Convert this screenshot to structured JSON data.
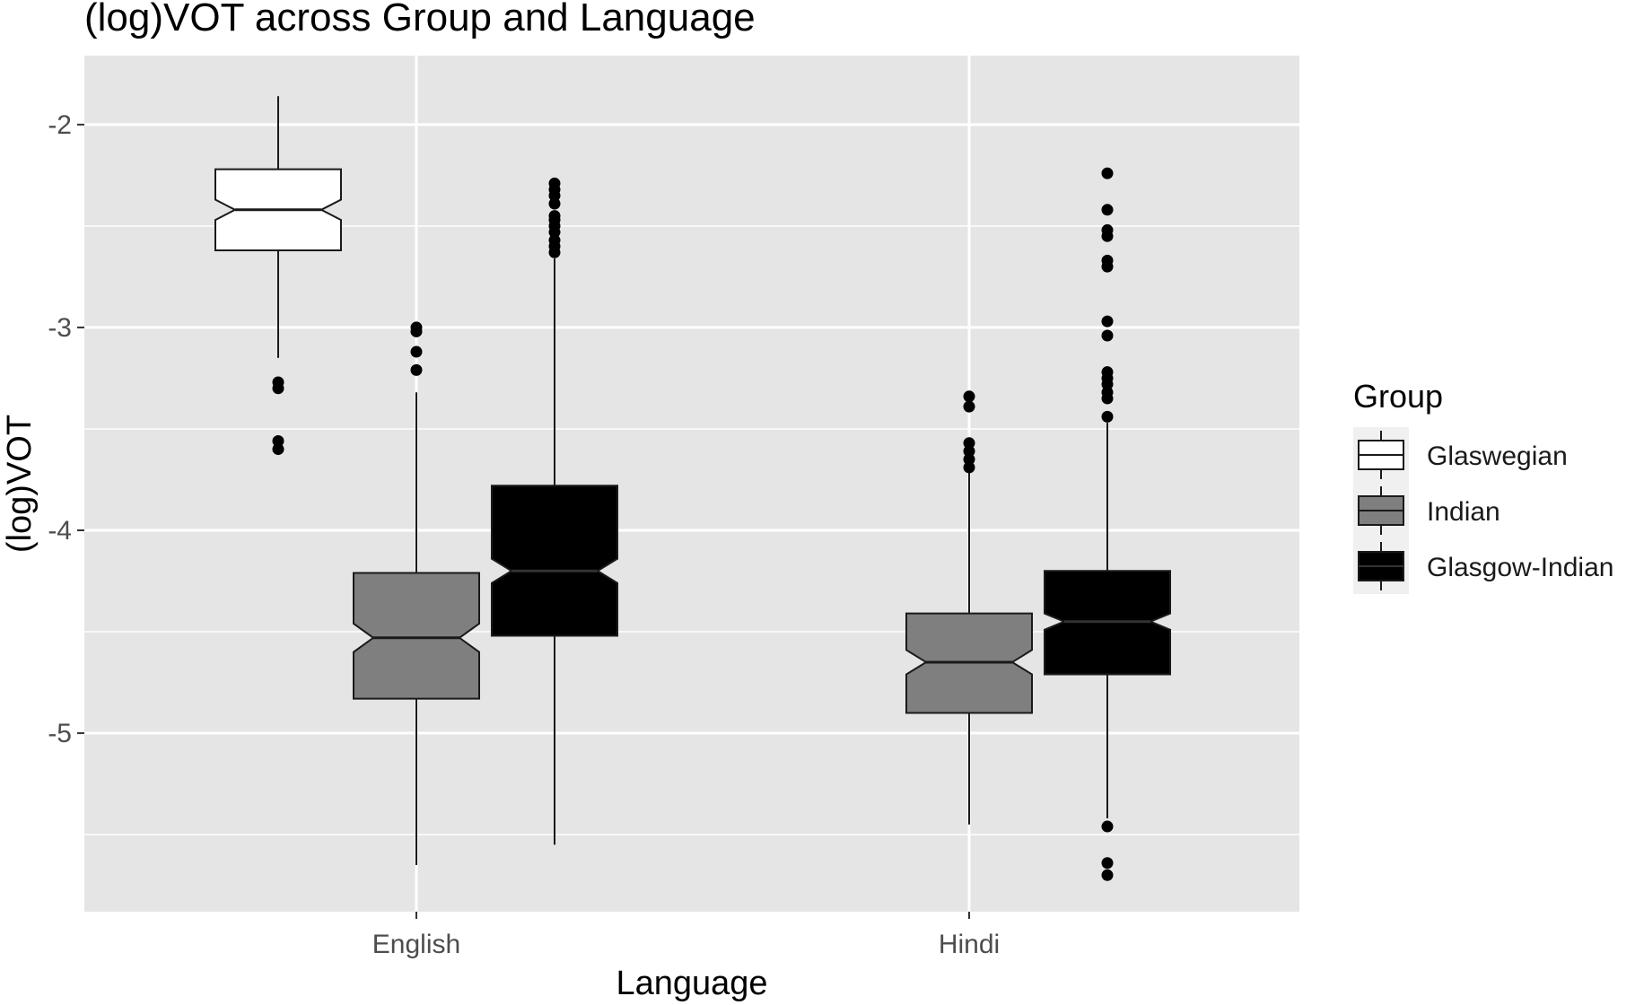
{
  "chart_data": {
    "type": "boxplot",
    "notched": true,
    "title": "(log)VOT across Group and Language",
    "xlabel": "Language",
    "ylabel": "(log)VOT",
    "categories": [
      "English",
      "Hindi"
    ],
    "yticks": [
      -2,
      -3,
      -4,
      -5
    ],
    "ytick_labels": [
      "-2",
      "-3",
      "-4",
      "-5"
    ],
    "ylim": [
      -5.88,
      -1.66
    ],
    "grid": true,
    "legend": {
      "title": "Group",
      "position": "right",
      "entries": [
        "Glaswegian",
        "Indian",
        "Glasgow-Indian"
      ]
    },
    "series": [
      {
        "name": "Glaswegian",
        "color": "#ffffff",
        "boxes": [
          {
            "category": "English",
            "whisker_low": -3.15,
            "q1": -2.62,
            "notch_low": -2.47,
            "median": -2.42,
            "notch_high": -2.37,
            "q3": -2.22,
            "whisker_high": -1.86,
            "outliers": [
              -3.27,
              -3.3,
              -3.56,
              -3.6
            ]
          }
        ]
      },
      {
        "name": "Indian",
        "color": "#7f7f7f",
        "boxes": [
          {
            "category": "English",
            "whisker_low": -5.65,
            "q1": -4.83,
            "notch_low": -4.6,
            "median": -4.53,
            "notch_high": -4.46,
            "q3": -4.21,
            "whisker_high": -3.32,
            "outliers": [
              -3.0,
              -3.02,
              -3.12,
              -3.21
            ]
          },
          {
            "category": "Hindi",
            "whisker_low": -5.45,
            "q1": -4.9,
            "notch_low": -4.71,
            "median": -4.65,
            "notch_high": -4.59,
            "q3": -4.41,
            "whisker_high": -3.69,
            "outliers": [
              -3.34,
              -3.39,
              -3.57,
              -3.61,
              -3.65,
              -3.69
            ]
          }
        ]
      },
      {
        "name": "Glasgow-Indian",
        "color": "#000000",
        "boxes": [
          {
            "category": "English",
            "whisker_low": -5.55,
            "q1": -4.52,
            "notch_low": -4.26,
            "median": -4.2,
            "notch_high": -4.14,
            "q3": -3.78,
            "whisker_high": -2.66,
            "outliers": [
              -2.29,
              -2.32,
              -2.35,
              -2.39,
              -2.45,
              -2.47,
              -2.5,
              -2.53,
              -2.57,
              -2.6,
              -2.63
            ]
          },
          {
            "category": "Hindi",
            "whisker_low": -5.42,
            "q1": -4.71,
            "notch_low": -4.49,
            "median": -4.45,
            "notch_high": -4.41,
            "q3": -4.2,
            "whisker_high": -3.47,
            "outliers": [
              -2.24,
              -2.42,
              -2.52,
              -2.55,
              -2.67,
              -2.7,
              -2.97,
              -3.04,
              -3.22,
              -3.25,
              -3.28,
              -3.32,
              -3.35,
              -3.44,
              -5.46,
              -5.64,
              -5.7
            ]
          }
        ]
      }
    ]
  }
}
